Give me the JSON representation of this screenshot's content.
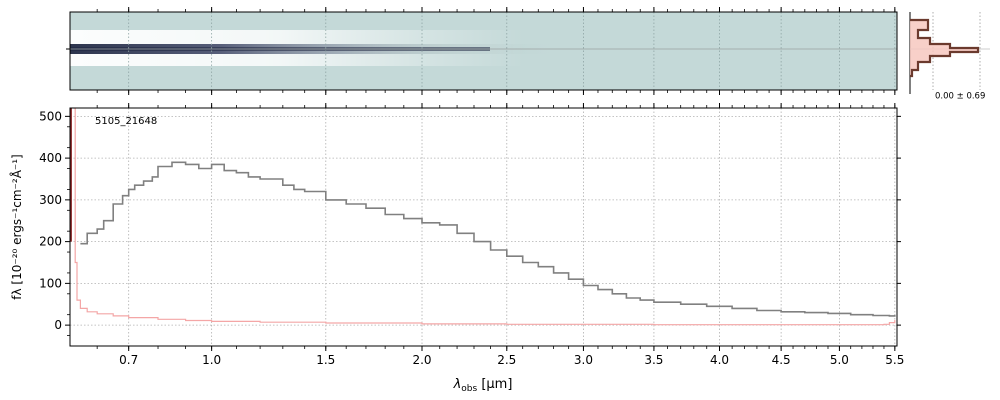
{
  "chart_data": {
    "type": "line",
    "title": "",
    "annotation": "5105_21648",
    "xlabel": "λobs [μm]",
    "xlabel_main": "λ",
    "xlabel_sub": "obs",
    "xlabel_unit": " [μm]",
    "ylabel": "fλ [10⁻²⁰ ergs⁻¹cm⁻²Å⁻¹]",
    "x_scale": "sqrt",
    "xlim": [
      0.52,
      5.52
    ],
    "ylim": [
      -50,
      520
    ],
    "x_ticks": [
      0.7,
      1.0,
      1.5,
      2.0,
      2.5,
      3.0,
      3.5,
      4.0,
      4.5,
      5.0,
      5.5
    ],
    "x_tick_labels": [
      "0.7",
      "1.0",
      "1.5",
      "2.0",
      "2.5",
      "3.0",
      "3.5",
      "4.0",
      "4.5",
      "5.0",
      "5.5"
    ],
    "y_ticks": [
      0,
      100,
      200,
      300,
      400,
      500
    ],
    "y_tick_labels": [
      "0",
      "100",
      "200",
      "300",
      "400",
      "500"
    ],
    "grid": true,
    "series": [
      {
        "color": "#808080",
        "x": [
          0.55,
          0.57,
          0.6,
          0.62,
          0.65,
          0.68,
          0.7,
          0.72,
          0.75,
          0.78,
          0.8,
          0.85,
          0.9,
          0.95,
          1.0,
          1.05,
          1.1,
          1.15,
          1.2,
          1.3,
          1.35,
          1.4,
          1.5,
          1.6,
          1.7,
          1.8,
          1.9,
          2.0,
          2.1,
          2.2,
          2.3,
          2.4,
          2.5,
          2.6,
          2.7,
          2.8,
          2.9,
          3.0,
          3.1,
          3.2,
          3.3,
          3.4,
          3.5,
          3.7,
          3.9,
          4.1,
          4.3,
          4.5,
          4.7,
          4.9,
          5.1,
          5.3,
          5.45,
          5.5
        ],
        "y": [
          195,
          220,
          230,
          250,
          290,
          310,
          325,
          335,
          345,
          355,
          380,
          390,
          385,
          375,
          385,
          370,
          365,
          355,
          350,
          335,
          325,
          320,
          300,
          290,
          280,
          265,
          255,
          245,
          240,
          220,
          200,
          180,
          165,
          150,
          140,
          125,
          110,
          95,
          85,
          75,
          65,
          60,
          55,
          50,
          45,
          40,
          35,
          32,
          30,
          28,
          25,
          23,
          22,
          25
        ]
      },
      {
        "color": "#f4a6a6",
        "x": [
          0.53,
          0.535,
          0.54,
          0.55,
          0.57,
          0.6,
          0.65,
          0.7,
          0.8,
          0.9,
          1.0,
          1.2,
          1.5,
          2.0,
          2.5,
          3.0,
          3.5,
          4.0,
          4.5,
          5.0,
          5.4,
          5.45,
          5.5
        ],
        "y": [
          520,
          150,
          60,
          40,
          32,
          27,
          22,
          18,
          14,
          11,
          9,
          7,
          5,
          3,
          2,
          2,
          1,
          1,
          1,
          1,
          2,
          6,
          12
        ]
      },
      {
        "color": "#8b2525",
        "x": [
          0.523,
          0.523
        ],
        "y": [
          200,
          520
        ]
      }
    ]
  },
  "spectrum_2d": {
    "histogram_label": "0.00 ± 0.69",
    "histogram_color": "#6b3a2e",
    "histogram_fill": "#f7c8bf",
    "colormap": [
      "#c4d9d8",
      "#ffffff",
      "#2a2a4a"
    ]
  }
}
